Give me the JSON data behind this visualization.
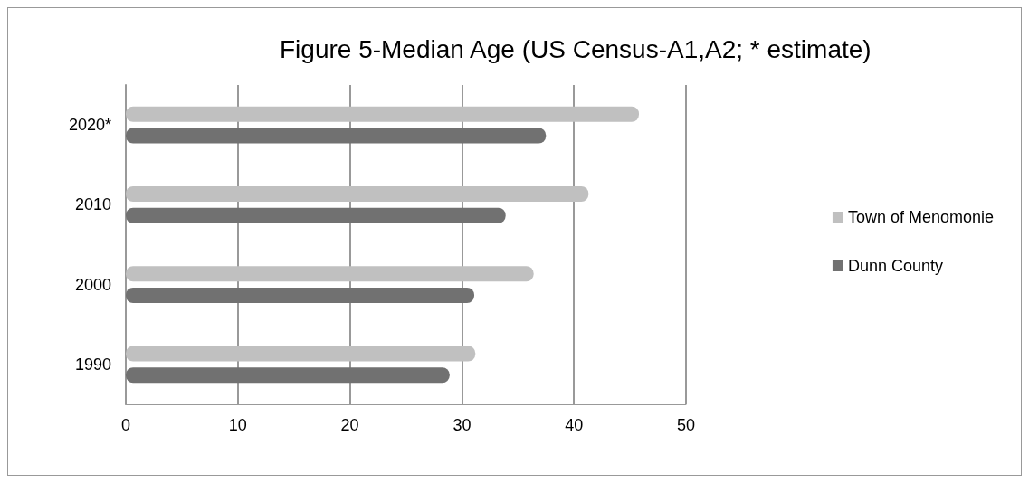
{
  "chart_data": {
    "type": "bar",
    "orientation": "horizontal",
    "title": "Figure 5-Median Age (US Census-A1,A2; * estimate)",
    "categories": [
      "2020*",
      "2010",
      "2000",
      "1990"
    ],
    "series": [
      {
        "name": "Town of Menomonie",
        "color": "#c0c0c0",
        "values": [
          45.8,
          41.3,
          36.4,
          31.2
        ]
      },
      {
        "name": "Dunn County",
        "color": "#717171",
        "values": [
          37.5,
          33.9,
          31.1,
          28.9
        ]
      }
    ],
    "xlim": [
      0,
      50
    ],
    "xticks": [
      0,
      10,
      20,
      30,
      40,
      50
    ],
    "grid": "x",
    "legend": "right"
  }
}
